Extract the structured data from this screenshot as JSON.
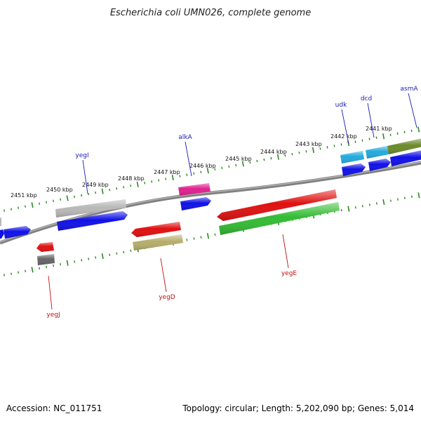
{
  "header": {
    "title": "Escherichia coli UMN026, complete genome"
  },
  "footer": {
    "accession": "Accession: NC_011751",
    "summary": "Topology: circular; Length: 5,202,090 bp; Genes: 5,014"
  },
  "scale": {
    "tick_labels": [
      "2451 kbp",
      "2450 kbp",
      "2449 kbp",
      "2448 kbp",
      "2447 kbp",
      "2446 kbp",
      "2445 kbp",
      "2444 kbp",
      "2443 kbp",
      "2442 kbp",
      "2441 kbp"
    ]
  },
  "gene_labels": {
    "forward": [
      "yegI",
      "alkA",
      "udk",
      "dcd",
      "asmA"
    ],
    "reverse": [
      "yegJ",
      "yegD",
      "yegE"
    ]
  },
  "colors": {
    "backbone": "#808080",
    "tick": "#2a8a1f",
    "blue": "#1010e8",
    "red": "#e01010",
    "green": "#33bb33",
    "gray": "#b8b8b8",
    "darkgray": "#666666",
    "magenta": "#e0208f",
    "cyan": "#22aadd",
    "olive": "#6b8a2a",
    "khaki": "#b5ad6a"
  }
}
